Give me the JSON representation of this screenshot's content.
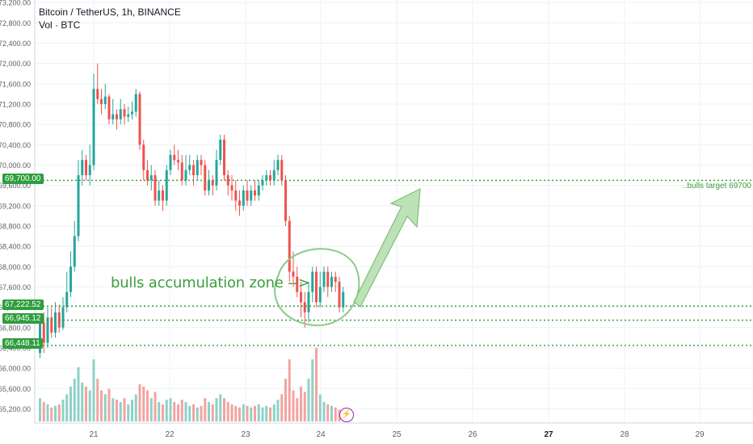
{
  "header": {
    "title": "Bitcoin / TetherUS, 1h, BINANCE",
    "volume_label": "Vol · BTC"
  },
  "annotations": {
    "zone_text": "bulls accumulation zone -->",
    "target_text": "..bulls target 69700"
  },
  "price_tags": [
    {
      "label": "69,700.00",
      "value": 69700
    },
    {
      "label": "67,222.52",
      "value": 67222.52
    },
    {
      "label": "66,945.12",
      "value": 66945.12
    },
    {
      "label": "66,448.11",
      "value": 66448.11
    }
  ],
  "colors": {
    "up": "#26a69a",
    "down": "#ef5350",
    "vol_up": "#8fd0c8",
    "vol_down": "#f4a3a0",
    "annotation": "#3d9e3d",
    "grid": "#eef0f4",
    "axis_text": "#5d606b",
    "event_icon": "#9c27b0"
  },
  "icons": {
    "event": "lightning-icon"
  },
  "chart_data": {
    "type": "candlestick",
    "y_axis_ticks": [
      "73,200.00",
      "72,800.00",
      "72,400.00",
      "72,000.00",
      "71,600.00",
      "71,200.00",
      "70,800.00",
      "70,400.00",
      "70,000.00",
      "69,600.00",
      "69,200.00",
      "68,800.00",
      "68,400.00",
      "68,000.00",
      "67,600.00",
      "67,200.00",
      "66,800.00",
      "66,400.00",
      "66,000.00",
      "65,600.00",
      "65,200.00"
    ],
    "x_axis_ticks": [
      "21",
      "22",
      "23",
      "24",
      "25",
      "26",
      "27",
      "28",
      "29"
    ],
    "ylim": [
      65000,
      73250
    ],
    "horizontal_levels": [
      69700,
      67222.52,
      66945.12,
      66448.11
    ],
    "candles": [
      [
        66300,
        66900,
        67050,
        66200
      ],
      [
        66900,
        66500,
        67100,
        66300
      ],
      [
        66500,
        67000,
        67200,
        66400
      ],
      [
        67000,
        66700,
        67200,
        66600
      ],
      [
        66700,
        67100,
        67300,
        66600
      ],
      [
        67100,
        66800,
        67250,
        66700
      ],
      [
        66800,
        67200,
        67400,
        66750
      ],
      [
        67200,
        67500,
        67900,
        67100
      ],
      [
        67500,
        68000,
        68300,
        67400
      ],
      [
        68000,
        68600,
        68900,
        67900
      ],
      [
        68600,
        69800,
        70100,
        68500
      ],
      [
        69800,
        70100,
        70300,
        69600
      ],
      [
        70100,
        69800,
        70200,
        69700
      ],
      [
        69800,
        70000,
        70400,
        69600
      ],
      [
        70000,
        71500,
        71800,
        69900
      ],
      [
        71500,
        71300,
        72000,
        71200
      ],
      [
        71300,
        71200,
        71500,
        71000
      ],
      [
        71200,
        71350,
        71600,
        71100
      ],
      [
        71350,
        70900,
        71400,
        70800
      ],
      [
        70900,
        71000,
        71300,
        70800
      ],
      [
        71000,
        70900,
        71100,
        70700
      ],
      [
        70900,
        71100,
        71300,
        70800
      ],
      [
        71100,
        70950,
        71200,
        70800
      ],
      [
        70950,
        71000,
        71150,
        70850
      ],
      [
        71000,
        71050,
        71250,
        70900
      ],
      [
        71050,
        71400,
        71500,
        70950
      ],
      [
        71400,
        70400,
        71450,
        70300
      ],
      [
        70400,
        69900,
        70500,
        69700
      ],
      [
        69900,
        69700,
        70100,
        69600
      ],
      [
        69700,
        69800,
        70000,
        69500
      ],
      [
        69800,
        69300,
        69900,
        69200
      ],
      [
        69300,
        69500,
        69700,
        69200
      ],
      [
        69500,
        69300,
        69600,
        69100
      ],
      [
        69300,
        69900,
        70000,
        69200
      ],
      [
        69900,
        70200,
        70300,
        69800
      ],
      [
        70200,
        70100,
        70400,
        70000
      ],
      [
        70100,
        70050,
        70300,
        69900
      ],
      [
        70050,
        69700,
        70200,
        69600
      ],
      [
        69700,
        69900,
        70200,
        69600
      ],
      [
        69900,
        70000,
        70200,
        69800
      ],
      [
        70000,
        69800,
        70100,
        69600
      ],
      [
        69800,
        70100,
        70200,
        69700
      ],
      [
        70100,
        70000,
        70200,
        69800
      ],
      [
        70000,
        69500,
        70100,
        69400
      ],
      [
        69500,
        69700,
        69900,
        69400
      ],
      [
        69700,
        69600,
        69800,
        69400
      ],
      [
        69600,
        70100,
        70300,
        69500
      ],
      [
        70100,
        70500,
        70600,
        70000
      ],
      [
        70500,
        69800,
        70600,
        69700
      ],
      [
        69800,
        69600,
        69900,
        69400
      ],
      [
        69600,
        69500,
        69800,
        69300
      ],
      [
        69500,
        69300,
        69700,
        69100
      ],
      [
        69300,
        69200,
        69500,
        69000
      ],
      [
        69200,
        69500,
        69600,
        69100
      ],
      [
        69500,
        69300,
        69700,
        69200
      ],
      [
        69300,
        69500,
        69600,
        69200
      ],
      [
        69500,
        69400,
        69700,
        69300
      ],
      [
        69400,
        69600,
        69700,
        69300
      ],
      [
        69600,
        69700,
        69800,
        69500
      ],
      [
        69700,
        69800,
        69900,
        69600
      ],
      [
        69800,
        69700,
        69900,
        69600
      ],
      [
        69700,
        69900,
        70100,
        69600
      ],
      [
        69900,
        70100,
        70200,
        69800
      ],
      [
        70100,
        69700,
        70200,
        69600
      ],
      [
        69700,
        68900,
        69800,
        68800
      ],
      [
        68900,
        67900,
        69000,
        67700
      ],
      [
        67900,
        67800,
        68300,
        67600
      ],
      [
        67800,
        67500,
        68000,
        67400
      ],
      [
        67500,
        67300,
        67700,
        67000
      ],
      [
        67300,
        67100,
        67500,
        66800
      ],
      [
        67100,
        67500,
        67700,
        66900
      ],
      [
        67500,
        67900,
        68000,
        67300
      ],
      [
        67900,
        67300,
        68000,
        67200
      ],
      [
        67300,
        67600,
        67900,
        67200
      ],
      [
        67600,
        67900,
        68000,
        67500
      ],
      [
        67900,
        67600,
        68000,
        67400
      ],
      [
        67600,
        67800,
        67900,
        67500
      ],
      [
        67800,
        67700,
        67900,
        67500
      ],
      [
        67700,
        67200,
        67800,
        67100
      ],
      [
        67200,
        67500,
        67600,
        67100
      ]
    ],
    "volumes": [
      [
        0.3,
        1
      ],
      [
        0.25,
        0
      ],
      [
        0.22,
        1
      ],
      [
        0.18,
        0
      ],
      [
        0.2,
        1
      ],
      [
        0.22,
        0
      ],
      [
        0.28,
        1
      ],
      [
        0.35,
        1
      ],
      [
        0.45,
        1
      ],
      [
        0.55,
        1
      ],
      [
        0.7,
        1
      ],
      [
        0.5,
        1
      ],
      [
        0.45,
        0
      ],
      [
        0.4,
        1
      ],
      [
        0.8,
        1
      ],
      [
        0.55,
        0
      ],
      [
        0.4,
        0
      ],
      [
        0.35,
        1
      ],
      [
        0.42,
        0
      ],
      [
        0.3,
        1
      ],
      [
        0.28,
        0
      ],
      [
        0.25,
        1
      ],
      [
        0.3,
        0
      ],
      [
        0.22,
        1
      ],
      [
        0.28,
        1
      ],
      [
        0.35,
        1
      ],
      [
        0.48,
        0
      ],
      [
        0.45,
        0
      ],
      [
        0.4,
        0
      ],
      [
        0.3,
        1
      ],
      [
        0.38,
        0
      ],
      [
        0.25,
        1
      ],
      [
        0.22,
        0
      ],
      [
        0.28,
        1
      ],
      [
        0.3,
        1
      ],
      [
        0.25,
        0
      ],
      [
        0.22,
        0
      ],
      [
        0.28,
        0
      ],
      [
        0.25,
        1
      ],
      [
        0.2,
        1
      ],
      [
        0.22,
        0
      ],
      [
        0.18,
        1
      ],
      [
        0.2,
        0
      ],
      [
        0.3,
        0
      ],
      [
        0.25,
        1
      ],
      [
        0.22,
        0
      ],
      [
        0.3,
        1
      ],
      [
        0.35,
        1
      ],
      [
        0.3,
        0
      ],
      [
        0.25,
        0
      ],
      [
        0.22,
        0
      ],
      [
        0.2,
        0
      ],
      [
        0.18,
        0
      ],
      [
        0.22,
        1
      ],
      [
        0.2,
        0
      ],
      [
        0.18,
        1
      ],
      [
        0.2,
        0
      ],
      [
        0.22,
        1
      ],
      [
        0.18,
        1
      ],
      [
        0.2,
        1
      ],
      [
        0.18,
        0
      ],
      [
        0.22,
        1
      ],
      [
        0.28,
        1
      ],
      [
        0.35,
        0
      ],
      [
        0.55,
        0
      ],
      [
        0.8,
        0
      ],
      [
        0.4,
        0
      ],
      [
        0.3,
        0
      ],
      [
        0.45,
        0
      ],
      [
        0.38,
        0
      ],
      [
        0.55,
        1
      ],
      [
        0.8,
        1
      ],
      [
        0.95,
        0
      ],
      [
        0.35,
        1
      ],
      [
        0.25,
        1
      ],
      [
        0.22,
        0
      ],
      [
        0.2,
        1
      ],
      [
        0.18,
        0
      ],
      [
        0.15,
        0
      ],
      [
        0.12,
        1
      ]
    ]
  }
}
